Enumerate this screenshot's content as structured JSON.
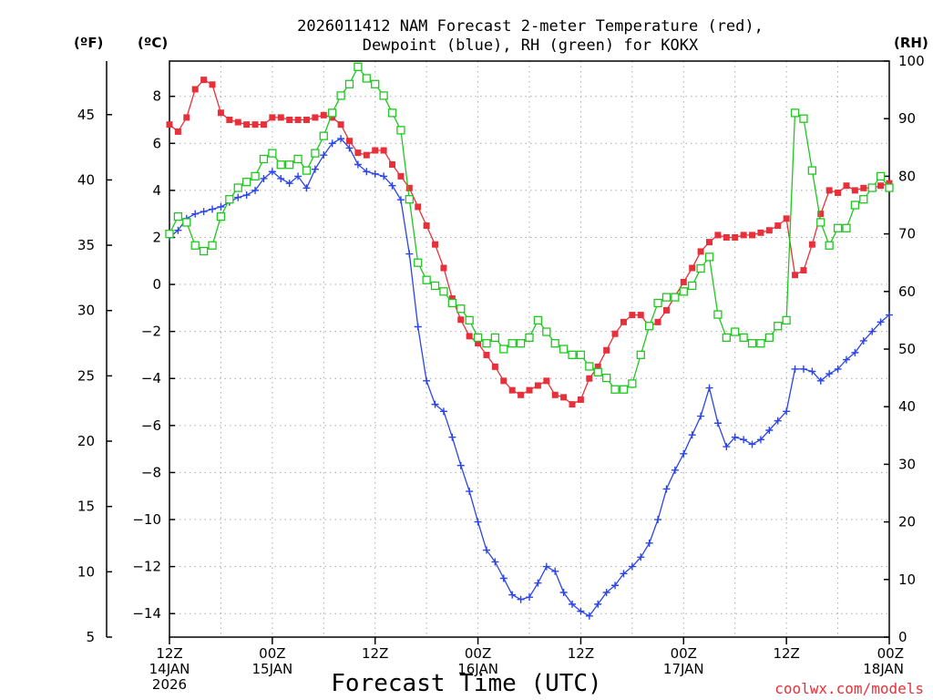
{
  "chart_data": {
    "type": "line",
    "title_lines": [
      "2026011412 NAM Forecast 2-meter Temperature (red),",
      "Dewpoint (blue), RH (green) for KOKX"
    ],
    "xlabel": "Forecast Time (UTC)",
    "credit": "coolwx.com/models",
    "units": {
      "fahrenheit": "(ºF)",
      "celsius": "(ºC)",
      "rh": "(RH)"
    },
    "xlim": [
      0,
      84
    ],
    "ylim_celsius": [
      -15,
      9.5
    ],
    "ylim_rh": [
      0,
      100
    ],
    "y_ticks_celsius": [
      "8",
      "6",
      "4",
      "2",
      "0",
      "−2",
      "−4",
      "−6",
      "−8",
      "−10",
      "−12",
      "−14"
    ],
    "y_tick_values_celsius": [
      8,
      6,
      4,
      2,
      0,
      -2,
      -4,
      -6,
      -8,
      -10,
      -12,
      -14
    ],
    "y_ticks_fahrenheit": [
      "45",
      "40",
      "35",
      "30",
      "25",
      "20",
      "15",
      "10",
      "5"
    ],
    "y_tick_values_fahrenheit": [
      45,
      40,
      35,
      30,
      25,
      20,
      15,
      10,
      5
    ],
    "y_ticks_rh": [
      "100",
      "90",
      "80",
      "70",
      "60",
      "50",
      "40",
      "30",
      "20",
      "10",
      "0"
    ],
    "y_tick_values_rh": [
      100,
      90,
      80,
      70,
      60,
      50,
      40,
      30,
      20,
      10,
      0
    ],
    "x_ticks": [
      {
        "hour": 0,
        "lines": [
          "12Z",
          "14JAN",
          "2026"
        ]
      },
      {
        "hour": 12,
        "lines": [
          "00Z",
          "15JAN"
        ]
      },
      {
        "hour": 24,
        "lines": [
          "12Z"
        ]
      },
      {
        "hour": 36,
        "lines": [
          "00Z",
          "16JAN"
        ]
      },
      {
        "hour": 48,
        "lines": [
          "12Z"
        ]
      },
      {
        "hour": 60,
        "lines": [
          "00Z",
          "17JAN"
        ]
      },
      {
        "hour": 72,
        "lines": [
          "12Z"
        ]
      },
      {
        "hour": 84,
        "lines": [
          "00Z",
          "18JAN"
        ]
      }
    ],
    "series": [
      {
        "name": "Temperature",
        "unit": "°C",
        "axis": "celsius",
        "color": "#e8303a",
        "marker": "filled-square",
        "x": [
          0,
          1,
          2,
          3,
          4,
          5,
          6,
          7,
          8,
          9,
          10,
          11,
          12,
          13,
          14,
          15,
          16,
          17,
          18,
          19,
          20,
          21,
          22,
          23,
          24,
          25,
          26,
          27,
          28,
          29,
          30,
          31,
          32,
          33,
          34,
          35,
          36,
          37,
          38,
          39,
          40,
          41,
          42,
          43,
          44,
          45,
          46,
          47,
          48,
          49,
          50,
          51,
          52,
          53,
          54,
          55,
          56,
          57,
          58,
          59,
          60,
          61,
          62,
          63,
          64,
          65,
          66,
          67,
          68,
          69,
          70,
          71,
          72,
          73,
          74,
          75,
          76,
          77,
          78,
          79,
          80,
          81,
          82,
          83,
          84
        ],
        "values": [
          6.8,
          6.5,
          7.1,
          8.3,
          8.7,
          8.5,
          7.3,
          7.0,
          6.9,
          6.8,
          6.8,
          6.8,
          7.1,
          7.1,
          7.0,
          7.0,
          7.0,
          7.1,
          7.2,
          7.1,
          6.8,
          6.1,
          5.6,
          5.5,
          5.7,
          5.7,
          5.1,
          4.6,
          4.1,
          3.3,
          2.5,
          1.7,
          0.7,
          -0.6,
          -1.5,
          -2.2,
          -2.5,
          -3.0,
          -3.5,
          -4.1,
          -4.5,
          -4.7,
          -4.5,
          -4.3,
          -4.1,
          -4.7,
          -4.8,
          -5.1,
          -4.9,
          -4.0,
          -3.5,
          -2.8,
          -2.1,
          -1.6,
          -1.3,
          -1.3,
          -1.8,
          -1.6,
          -1.1,
          -0.5,
          0.1,
          0.7,
          1.4,
          1.8,
          2.1,
          2.0,
          2.0,
          2.1,
          2.1,
          2.2,
          2.3,
          2.5,
          2.8,
          0.4,
          0.6,
          1.7,
          3.0,
          4.0,
          3.9,
          4.2,
          4.0,
          4.1,
          4.1,
          4.2,
          4.3
        ]
      },
      {
        "name": "Dewpoint",
        "unit": "°C",
        "axis": "celsius",
        "color": "#2b45e6",
        "marker": "plus",
        "x": [
          0,
          1,
          2,
          3,
          4,
          5,
          6,
          7,
          8,
          9,
          10,
          11,
          12,
          13,
          14,
          15,
          16,
          17,
          18,
          19,
          20,
          21,
          22,
          23,
          24,
          25,
          26,
          27,
          28,
          29,
          30,
          31,
          32,
          33,
          34,
          35,
          36,
          37,
          38,
          39,
          40,
          41,
          42,
          43,
          44,
          45,
          46,
          47,
          48,
          49,
          50,
          51,
          52,
          53,
          54,
          55,
          56,
          57,
          58,
          59,
          60,
          61,
          62,
          63,
          64,
          65,
          66,
          67,
          68,
          69,
          70,
          71,
          72,
          73,
          74,
          75,
          76,
          77,
          78,
          79,
          80,
          81,
          82,
          83,
          84
        ],
        "values": [
          2.0,
          2.3,
          2.8,
          3.0,
          3.1,
          3.2,
          3.3,
          3.5,
          3.7,
          3.8,
          4.0,
          4.5,
          4.8,
          4.5,
          4.3,
          4.6,
          4.1,
          4.9,
          5.5,
          6.0,
          6.2,
          5.8,
          5.1,
          4.8,
          4.7,
          4.6,
          4.2,
          3.6,
          1.3,
          -1.8,
          -4.1,
          -5.1,
          -5.4,
          -6.5,
          -7.7,
          -8.8,
          -10.1,
          -11.3,
          -11.8,
          -12.5,
          -13.2,
          -13.4,
          -13.3,
          -12.7,
          -12.0,
          -12.2,
          -13.1,
          -13.6,
          -13.9,
          -14.1,
          -13.6,
          -13.1,
          -12.8,
          -12.3,
          -12.0,
          -11.6,
          -11.0,
          -10.0,
          -8.7,
          -7.9,
          -7.2,
          -6.4,
          -5.6,
          -4.4,
          -5.9,
          -6.9,
          -6.5,
          -6.6,
          -6.8,
          -6.6,
          -6.2,
          -5.8,
          -5.4,
          -3.6,
          -3.6,
          -3.7,
          -4.1,
          -3.8,
          -3.6,
          -3.2,
          -2.9,
          -2.4,
          -2.0,
          -1.6,
          -1.3
        ]
      },
      {
        "name": "RH",
        "unit": "%",
        "axis": "rh",
        "color": "#1ec81e",
        "marker": "open-square",
        "x": [
          0,
          1,
          2,
          3,
          4,
          5,
          6,
          7,
          8,
          9,
          10,
          11,
          12,
          13,
          14,
          15,
          16,
          17,
          18,
          19,
          20,
          21,
          22,
          23,
          24,
          25,
          26,
          27,
          28,
          29,
          30,
          31,
          32,
          33,
          34,
          35,
          36,
          37,
          38,
          39,
          40,
          41,
          42,
          43,
          44,
          45,
          46,
          47,
          48,
          49,
          50,
          51,
          52,
          53,
          54,
          55,
          56,
          57,
          58,
          59,
          60,
          61,
          62,
          63,
          64,
          65,
          66,
          67,
          68,
          69,
          70,
          71,
          72,
          73,
          74,
          75,
          76,
          77,
          78,
          79,
          80,
          81,
          82,
          83,
          84
        ],
        "values": [
          70,
          73,
          72,
          68,
          67,
          68,
          73,
          76,
          78,
          79,
          80,
          83,
          84,
          82,
          82,
          83,
          81,
          84,
          87,
          91,
          94,
          96,
          99,
          97,
          96,
          94,
          91,
          88,
          76,
          65,
          62,
          61,
          60,
          58,
          57,
          55,
          52,
          51,
          52,
          50,
          51,
          51,
          52,
          55,
          53,
          51,
          50,
          49,
          49,
          47,
          46,
          45,
          43,
          43,
          44,
          49,
          54,
          58,
          59,
          59,
          60,
          61,
          64,
          66,
          56,
          52,
          53,
          52,
          51,
          51,
          52,
          54,
          55,
          91,
          90,
          81,
          72,
          68,
          71,
          71,
          75,
          76,
          78,
          80,
          78
        ]
      }
    ]
  }
}
